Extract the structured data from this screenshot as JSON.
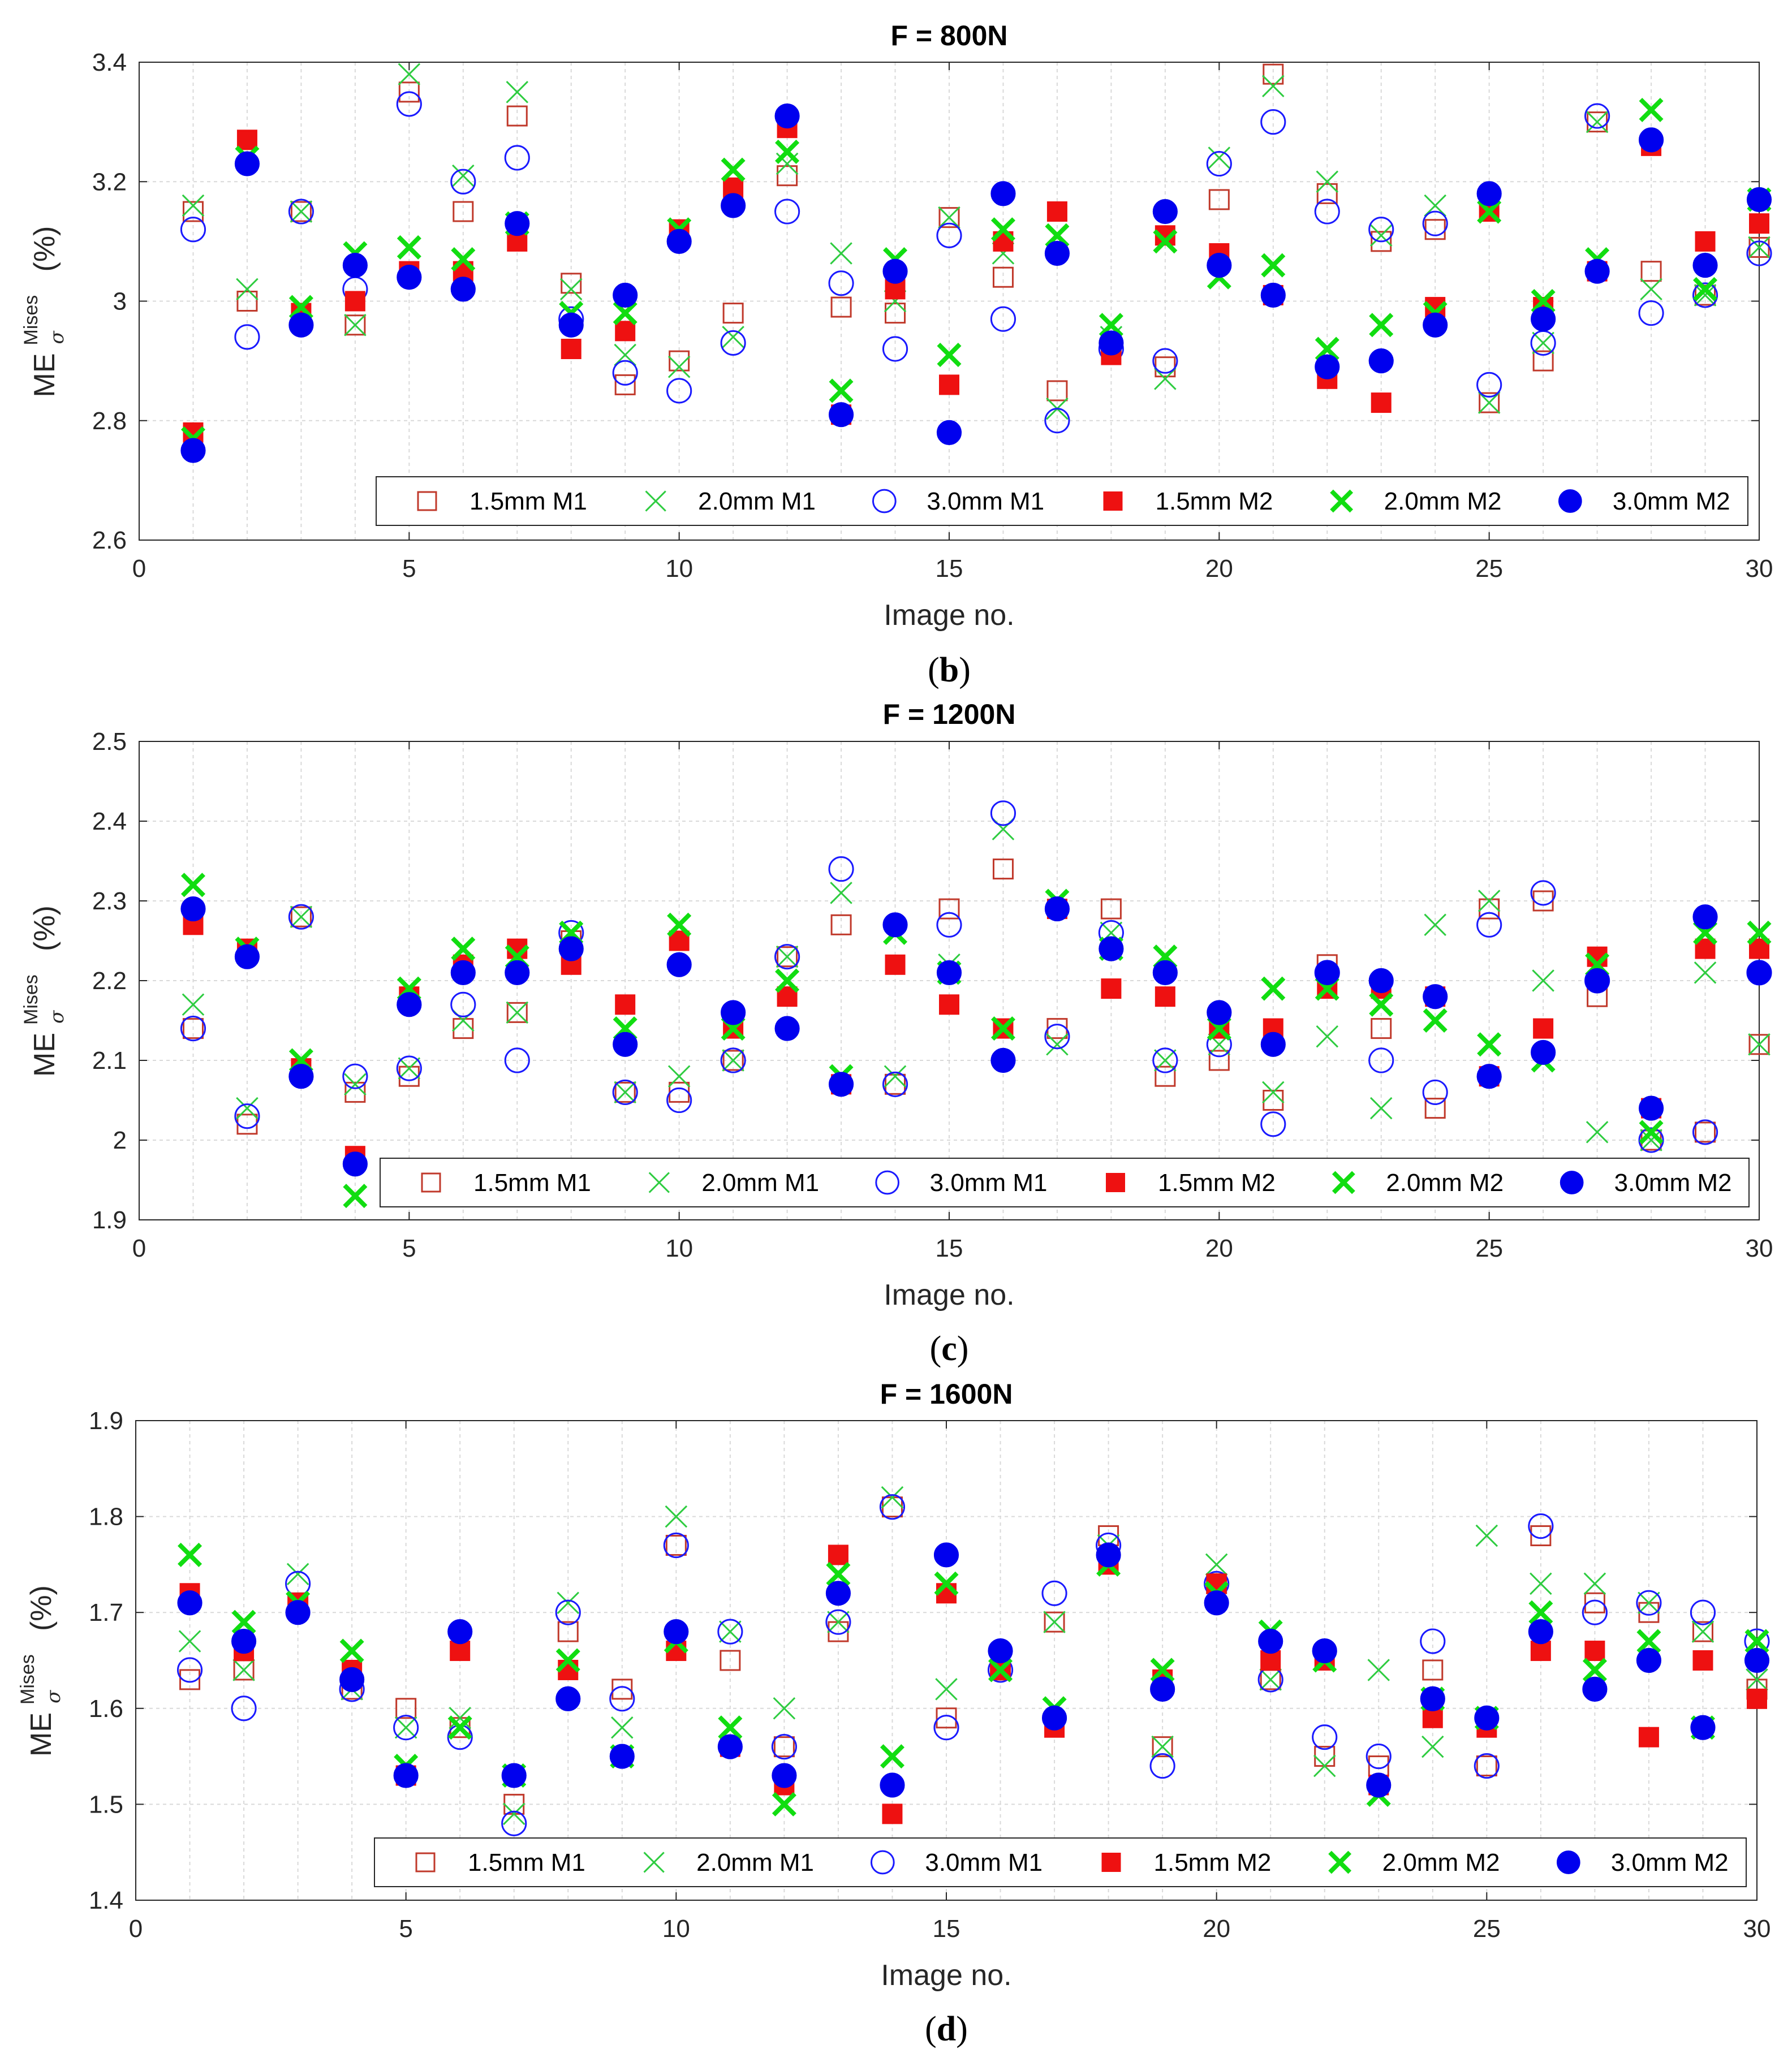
{
  "chart_data": [
    {
      "type": "scatter",
      "title": "F = 800N",
      "panel_label": "b",
      "xlabel": "Image no.",
      "ylabel": "ME",
      "ylabel_superscript": "Mises",
      "ylabel_subscript": "σ",
      "ylabel_unit": "(%)",
      "xlim": [
        0,
        30
      ],
      "ylim": [
        2.6,
        3.4
      ],
      "xticks": [
        0,
        5,
        10,
        15,
        20,
        25,
        30
      ],
      "xtick_labels": [
        "0",
        "5",
        "10",
        "15",
        "20",
        "25",
        "30"
      ],
      "yticks": [
        2.6,
        2.8,
        3.0,
        3.2,
        3.4
      ],
      "ytick_labels": [
        "2.6",
        "2.8",
        "3",
        "3.2",
        "3.4"
      ],
      "grid": true,
      "legend_position": "bottom-right",
      "x": [
        1,
        2,
        3,
        4,
        5,
        6,
        7,
        8,
        9,
        10,
        11,
        12,
        13,
        14,
        15,
        16,
        17,
        18,
        19,
        20,
        21,
        22,
        23,
        24,
        25,
        26,
        27,
        28,
        29,
        30
      ],
      "series": [
        {
          "name": "1.5mm M1",
          "marker": "square-open",
          "color": "#c0392b",
          "values": [
            3.15,
            3.0,
            3.15,
            2.96,
            3.35,
            3.15,
            3.31,
            3.03,
            2.86,
            2.9,
            2.98,
            3.21,
            2.99,
            2.98,
            3.14,
            3.04,
            2.85,
            2.93,
            2.89,
            3.17,
            3.38,
            3.18,
            3.1,
            3.12,
            2.83,
            2.9,
            3.3,
            3.05,
            3.01,
            3.09
          ]
        },
        {
          "name": "2.0mm M1",
          "marker": "x",
          "color": "#2ecc40",
          "values": [
            3.16,
            3.02,
            3.15,
            2.96,
            3.38,
            3.21,
            3.35,
            3.02,
            2.91,
            2.89,
            2.94,
            3.23,
            3.08,
            3.0,
            3.14,
            3.08,
            2.82,
            2.94,
            2.87,
            3.24,
            3.36,
            3.2,
            3.11,
            3.16,
            2.83,
            2.93,
            3.3,
            3.02,
            3.01,
            3.09
          ]
        },
        {
          "name": "3.0mm M1",
          "marker": "circle-open",
          "color": "#1a1aff",
          "values": [
            3.12,
            2.94,
            3.15,
            3.02,
            3.33,
            3.2,
            3.24,
            2.97,
            2.88,
            2.85,
            2.93,
            3.15,
            3.03,
            2.92,
            3.11,
            2.97,
            2.8,
            2.92,
            2.9,
            3.23,
            3.3,
            3.15,
            3.12,
            3.13,
            2.86,
            2.93,
            3.31,
            2.98,
            3.01,
            3.08
          ]
        },
        {
          "name": "1.5mm M2",
          "marker": "square-filled",
          "color": "#ee1111",
          "values": [
            2.78,
            3.27,
            2.98,
            3.0,
            3.05,
            3.05,
            3.1,
            2.92,
            2.95,
            3.12,
            3.19,
            3.29,
            2.81,
            3.02,
            2.86,
            3.1,
            3.15,
            2.91,
            3.11,
            3.08,
            3.01,
            2.87,
            2.83,
            2.99,
            3.15,
            2.99,
            3.05,
            3.26,
            3.1,
            3.13
          ]
        },
        {
          "name": "2.0mm M2",
          "marker": "x-bold",
          "color": "#11dd11",
          "values": [
            2.77,
            3.24,
            2.99,
            3.08,
            3.09,
            3.07,
            3.13,
            2.98,
            2.98,
            3.12,
            3.22,
            3.25,
            2.85,
            3.07,
            2.91,
            3.12,
            3.11,
            2.96,
            3.1,
            3.04,
            3.06,
            2.92,
            2.96,
            2.98,
            3.15,
            3.0,
            3.07,
            3.32,
            3.02,
            3.17
          ]
        },
        {
          "name": "3.0mm M2",
          "marker": "circle-filled",
          "color": "#0000ee",
          "values": [
            2.75,
            3.23,
            2.96,
            3.06,
            3.04,
            3.02,
            3.13,
            2.96,
            3.01,
            3.1,
            3.16,
            3.31,
            2.81,
            3.05,
            2.78,
            3.18,
            3.08,
            2.93,
            3.15,
            3.06,
            3.01,
            2.89,
            2.9,
            2.96,
            3.18,
            2.97,
            3.05,
            3.27,
            3.06,
            3.17
          ]
        }
      ]
    },
    {
      "type": "scatter",
      "title": "F = 1200N",
      "panel_label": "c",
      "xlabel": "Image no.",
      "ylabel": "ME",
      "ylabel_superscript": "Mises",
      "ylabel_subscript": "σ",
      "ylabel_unit": "(%)",
      "xlim": [
        0,
        30
      ],
      "ylim": [
        1.9,
        2.5
      ],
      "xticks": [
        0,
        5,
        10,
        15,
        20,
        25,
        30
      ],
      "xtick_labels": [
        "0",
        "5",
        "10",
        "15",
        "20",
        "25",
        "30"
      ],
      "yticks": [
        1.9,
        2.0,
        2.1,
        2.2,
        2.3,
        2.4,
        2.5
      ],
      "ytick_labels": [
        "1.9",
        "2",
        "2.1",
        "2.2",
        "2.3",
        "2.4",
        "2.5"
      ],
      "grid": true,
      "legend_position": "bottom-right",
      "x": [
        1,
        2,
        3,
        4,
        5,
        6,
        7,
        8,
        9,
        10,
        11,
        12,
        13,
        14,
        15,
        16,
        17,
        18,
        19,
        20,
        21,
        22,
        23,
        24,
        25,
        26,
        27,
        28,
        29,
        30
      ],
      "series": [
        {
          "name": "1.5mm M1",
          "marker": "square-open",
          "color": "#c0392b",
          "values": [
            2.14,
            2.02,
            2.28,
            2.06,
            2.08,
            2.14,
            2.16,
            2.25,
            2.06,
            2.06,
            2.1,
            2.23,
            2.27,
            2.07,
            2.29,
            2.34,
            2.14,
            2.29,
            2.08,
            2.1,
            2.05,
            2.22,
            2.14,
            2.04,
            2.29,
            2.3,
            2.18,
            2.0,
            2.01,
            2.12
          ]
        },
        {
          "name": "2.0mm M1",
          "marker": "x",
          "color": "#2ecc40",
          "values": [
            2.17,
            2.04,
            2.28,
            2.07,
            2.09,
            2.15,
            2.16,
            2.26,
            2.06,
            2.08,
            2.1,
            2.23,
            2.31,
            2.08,
            2.22,
            2.39,
            2.12,
            2.26,
            2.1,
            2.12,
            2.06,
            2.13,
            2.04,
            2.27,
            2.3,
            2.2,
            2.01,
            2.0,
            2.21,
            2.12
          ]
        },
        {
          "name": "3.0mm M1",
          "marker": "circle-open",
          "color": "#1a1aff",
          "values": [
            2.14,
            2.03,
            2.28,
            2.08,
            2.09,
            2.17,
            2.1,
            2.26,
            2.06,
            2.05,
            2.1,
            2.23,
            2.34,
            2.07,
            2.27,
            2.41,
            2.13,
            2.26,
            2.1,
            2.12,
            2.02,
            2.21,
            2.1,
            2.06,
            2.27,
            2.31,
            2.2,
            2.0,
            2.01,
            2.21
          ]
        },
        {
          "name": "1.5mm M2",
          "marker": "square-filled",
          "color": "#ee1111",
          "values": [
            2.27,
            2.24,
            2.09,
            1.98,
            2.18,
            2.22,
            2.24,
            2.22,
            2.17,
            2.25,
            2.14,
            2.18,
            2.07,
            2.22,
            2.17,
            2.14,
            2.29,
            2.19,
            2.18,
            2.14,
            2.14,
            2.19,
            2.19,
            2.18,
            2.08,
            2.14,
            2.23,
            2.04,
            2.24,
            2.24
          ]
        },
        {
          "name": "2.0mm M2",
          "marker": "x-bold",
          "color": "#11dd11",
          "values": [
            2.32,
            2.24,
            2.1,
            1.93,
            2.19,
            2.24,
            2.23,
            2.26,
            2.14,
            2.27,
            2.14,
            2.2,
            2.08,
            2.26,
            2.21,
            2.14,
            2.3,
            2.24,
            2.23,
            2.14,
            2.19,
            2.19,
            2.17,
            2.15,
            2.12,
            2.1,
            2.22,
            2.01,
            2.26,
            2.26
          ]
        },
        {
          "name": "3.0mm M2",
          "marker": "circle-filled",
          "color": "#0000ee",
          "values": [
            2.29,
            2.23,
            2.08,
            1.97,
            2.17,
            2.21,
            2.21,
            2.24,
            2.12,
            2.22,
            2.16,
            2.14,
            2.07,
            2.27,
            2.21,
            2.1,
            2.29,
            2.24,
            2.21,
            2.16,
            2.12,
            2.21,
            2.2,
            2.18,
            2.08,
            2.11,
            2.2,
            2.04,
            2.28,
            2.21
          ]
        }
      ]
    },
    {
      "type": "scatter",
      "title": "F = 1600N",
      "panel_label": "d",
      "xlabel": "Image no.",
      "ylabel": "ME",
      "ylabel_superscript": "Mises",
      "ylabel_subscript": "σ",
      "ylabel_unit": "(%)",
      "xlim": [
        0,
        30
      ],
      "ylim": [
        1.4,
        1.9
      ],
      "xticks": [
        0,
        5,
        10,
        15,
        20,
        25,
        30
      ],
      "xtick_labels": [
        "0",
        "5",
        "10",
        "15",
        "20",
        "25",
        "30"
      ],
      "yticks": [
        1.4,
        1.5,
        1.6,
        1.7,
        1.8,
        1.9
      ],
      "ytick_labels": [
        "1.4",
        "1.5",
        "1.6",
        "1.7",
        "1.8",
        "1.9"
      ],
      "grid": true,
      "legend_position": "bottom-right",
      "x": [
        1,
        2,
        3,
        4,
        5,
        6,
        7,
        8,
        9,
        10,
        11,
        12,
        13,
        14,
        15,
        16,
        17,
        18,
        19,
        20,
        21,
        22,
        23,
        24,
        25,
        26,
        27,
        28,
        29,
        30
      ],
      "series": [
        {
          "name": "1.5mm M1",
          "marker": "square-open",
          "color": "#c0392b",
          "values": [
            1.63,
            1.64,
            1.71,
            1.62,
            1.6,
            1.58,
            1.5,
            1.68,
            1.62,
            1.77,
            1.65,
            1.56,
            1.68,
            1.81,
            1.59,
            1.64,
            1.69,
            1.78,
            1.56,
            1.73,
            1.63,
            1.55,
            1.54,
            1.64,
            1.54,
            1.78,
            1.71,
            1.7,
            1.68,
            1.62
          ]
        },
        {
          "name": "2.0mm M1",
          "marker": "x",
          "color": "#2ecc40",
          "values": [
            1.67,
            1.64,
            1.74,
            1.62,
            1.58,
            1.59,
            1.49,
            1.71,
            1.58,
            1.8,
            1.68,
            1.6,
            1.69,
            1.82,
            1.62,
            1.64,
            1.69,
            1.77,
            1.56,
            1.75,
            1.63,
            1.54,
            1.64,
            1.56,
            1.78,
            1.73,
            1.73,
            1.71,
            1.68,
            1.63
          ]
        },
        {
          "name": "3.0mm M1",
          "marker": "circle-open",
          "color": "#1a1aff",
          "values": [
            1.64,
            1.6,
            1.73,
            1.62,
            1.58,
            1.57,
            1.48,
            1.7,
            1.61,
            1.77,
            1.68,
            1.56,
            1.69,
            1.81,
            1.58,
            1.64,
            1.72,
            1.77,
            1.54,
            1.73,
            1.63,
            1.57,
            1.55,
            1.67,
            1.54,
            1.79,
            1.7,
            1.71,
            1.7,
            1.67
          ]
        },
        {
          "name": "1.5mm M2",
          "marker": "square-filled",
          "color": "#ee1111",
          "values": [
            1.72,
            1.66,
            1.71,
            1.64,
            1.53,
            1.66,
            1.53,
            1.64,
            1.55,
            1.66,
            1.56,
            1.52,
            1.76,
            1.49,
            1.72,
            1.64,
            1.58,
            1.75,
            1.63,
            1.73,
            1.65,
            1.65,
            1.52,
            1.59,
            1.58,
            1.66,
            1.66,
            1.57,
            1.65,
            1.61
          ]
        },
        {
          "name": "2.0mm M2",
          "marker": "x-bold",
          "color": "#11dd11",
          "values": [
            1.76,
            1.69,
            1.71,
            1.66,
            1.54,
            1.58,
            1.53,
            1.65,
            1.55,
            1.67,
            1.58,
            1.5,
            1.74,
            1.55,
            1.73,
            1.64,
            1.6,
            1.75,
            1.64,
            1.72,
            1.68,
            1.65,
            1.51,
            1.61,
            1.59,
            1.7,
            1.64,
            1.67,
            1.58,
            1.67
          ]
        },
        {
          "name": "3.0mm M2",
          "marker": "circle-filled",
          "color": "#0000ee",
          "values": [
            1.71,
            1.67,
            1.7,
            1.63,
            1.53,
            1.68,
            1.53,
            1.61,
            1.55,
            1.68,
            1.56,
            1.53,
            1.72,
            1.52,
            1.76,
            1.66,
            1.59,
            1.76,
            1.62,
            1.71,
            1.67,
            1.66,
            1.52,
            1.61,
            1.59,
            1.68,
            1.62,
            1.65,
            1.58,
            1.65
          ]
        }
      ]
    }
  ]
}
